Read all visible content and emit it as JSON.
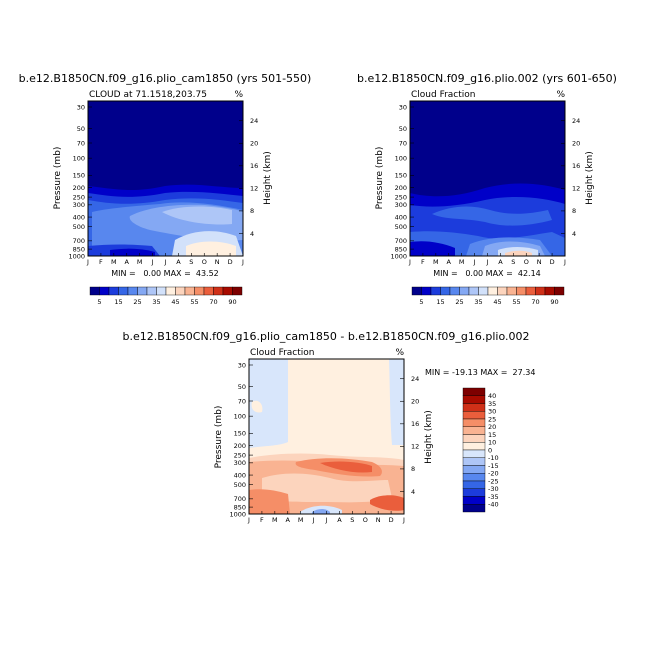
{
  "chart_data": [
    {
      "type": "heatmap",
      "title": "b.e12.B1850CN.f09_g16.plio_cam1850 (yrs 501-550)",
      "subtitle": "CLOUD at 71.1518,203.75",
      "units": "%",
      "ylabel": "Pressure (mb)",
      "ylabel_right": "Height (km)",
      "x_ticks": [
        "J",
        "F",
        "M",
        "A",
        "M",
        "J",
        "J",
        "A",
        "S",
        "O",
        "N",
        "D",
        "J"
      ],
      "y_ticks": [
        "30",
        "50",
        "70",
        "100",
        "150",
        "200",
        "250",
        "300",
        "400",
        "500",
        "700",
        "850",
        "1000"
      ],
      "y_ticks_right": [
        "24",
        "20",
        "16",
        "12",
        "8",
        "4"
      ],
      "stats": "MIN =   0.00 MAX =  43.52",
      "colorbar": {
        "labels": [
          "5",
          "15",
          "25",
          "35",
          "45",
          "55",
          "70",
          "90"
        ]
      }
    },
    {
      "type": "heatmap",
      "title": "b.e12.B1850CN.f09_g16.plio.002 (yrs 601-650)",
      "subtitle": "Cloud Fraction",
      "units": "%",
      "ylabel": "Pressure (mb)",
      "ylabel_right": "Height (km)",
      "x_ticks": [
        "J",
        "F",
        "M",
        "A",
        "M",
        "J",
        "J",
        "A",
        "S",
        "O",
        "N",
        "D",
        "J"
      ],
      "y_ticks": [
        "30",
        "50",
        "70",
        "100",
        "150",
        "200",
        "250",
        "300",
        "400",
        "500",
        "700",
        "850",
        "1000"
      ],
      "y_ticks_right": [
        "24",
        "20",
        "16",
        "12",
        "8",
        "4"
      ],
      "stats": "MIN =   0.00 MAX =  42.14",
      "colorbar": {
        "labels": [
          "5",
          "15",
          "25",
          "35",
          "45",
          "55",
          "70",
          "90"
        ]
      }
    },
    {
      "type": "heatmap",
      "title": "b.e12.B1850CN.f09_g16.plio_cam1850 - b.e12.B1850CN.f09_g16.plio.002",
      "subtitle": "Cloud Fraction",
      "units": "%",
      "ylabel": "Pressure (mb)",
      "ylabel_right": "Height (km)",
      "x_ticks": [
        "J",
        "F",
        "M",
        "A",
        "M",
        "J",
        "J",
        "A",
        "S",
        "O",
        "N",
        "D",
        "J"
      ],
      "y_ticks": [
        "30",
        "50",
        "70",
        "100",
        "150",
        "200",
        "250",
        "300",
        "400",
        "500",
        "700",
        "850",
        "1000"
      ],
      "y_ticks_right": [
        "24",
        "20",
        "16",
        "12",
        "8",
        "4"
      ],
      "stats": "MIN = -19.13 MAX =  27.34",
      "colorbar": {
        "labels": [
          "40",
          "35",
          "30",
          "25",
          "20",
          "15",
          "10",
          "0",
          "-10",
          "-15",
          "-20",
          "-25",
          "-30",
          "-35",
          "-40"
        ]
      }
    }
  ],
  "colors": {
    "seq": [
      "#00008b",
      "#0000c8",
      "#1c3cdc",
      "#3566e6",
      "#5887ee",
      "#84a8f3",
      "#aec6f7",
      "#d2e1fa",
      "#fff0e0",
      "#fcd4bd",
      "#f9b392",
      "#f58e67",
      "#ea5e3c",
      "#cf3018",
      "#a80b00",
      "#7d0000"
    ],
    "div": [
      "#7d0000",
      "#a80b00",
      "#cf3018",
      "#ea5e3c",
      "#f58e67",
      "#f9b392",
      "#fcd4bd",
      "#fff0e0",
      "#d8e6fb",
      "#aec6f7",
      "#84a8f3",
      "#5887ee",
      "#3566e6",
      "#1c3cdc",
      "#0000c8",
      "#00008b"
    ]
  }
}
